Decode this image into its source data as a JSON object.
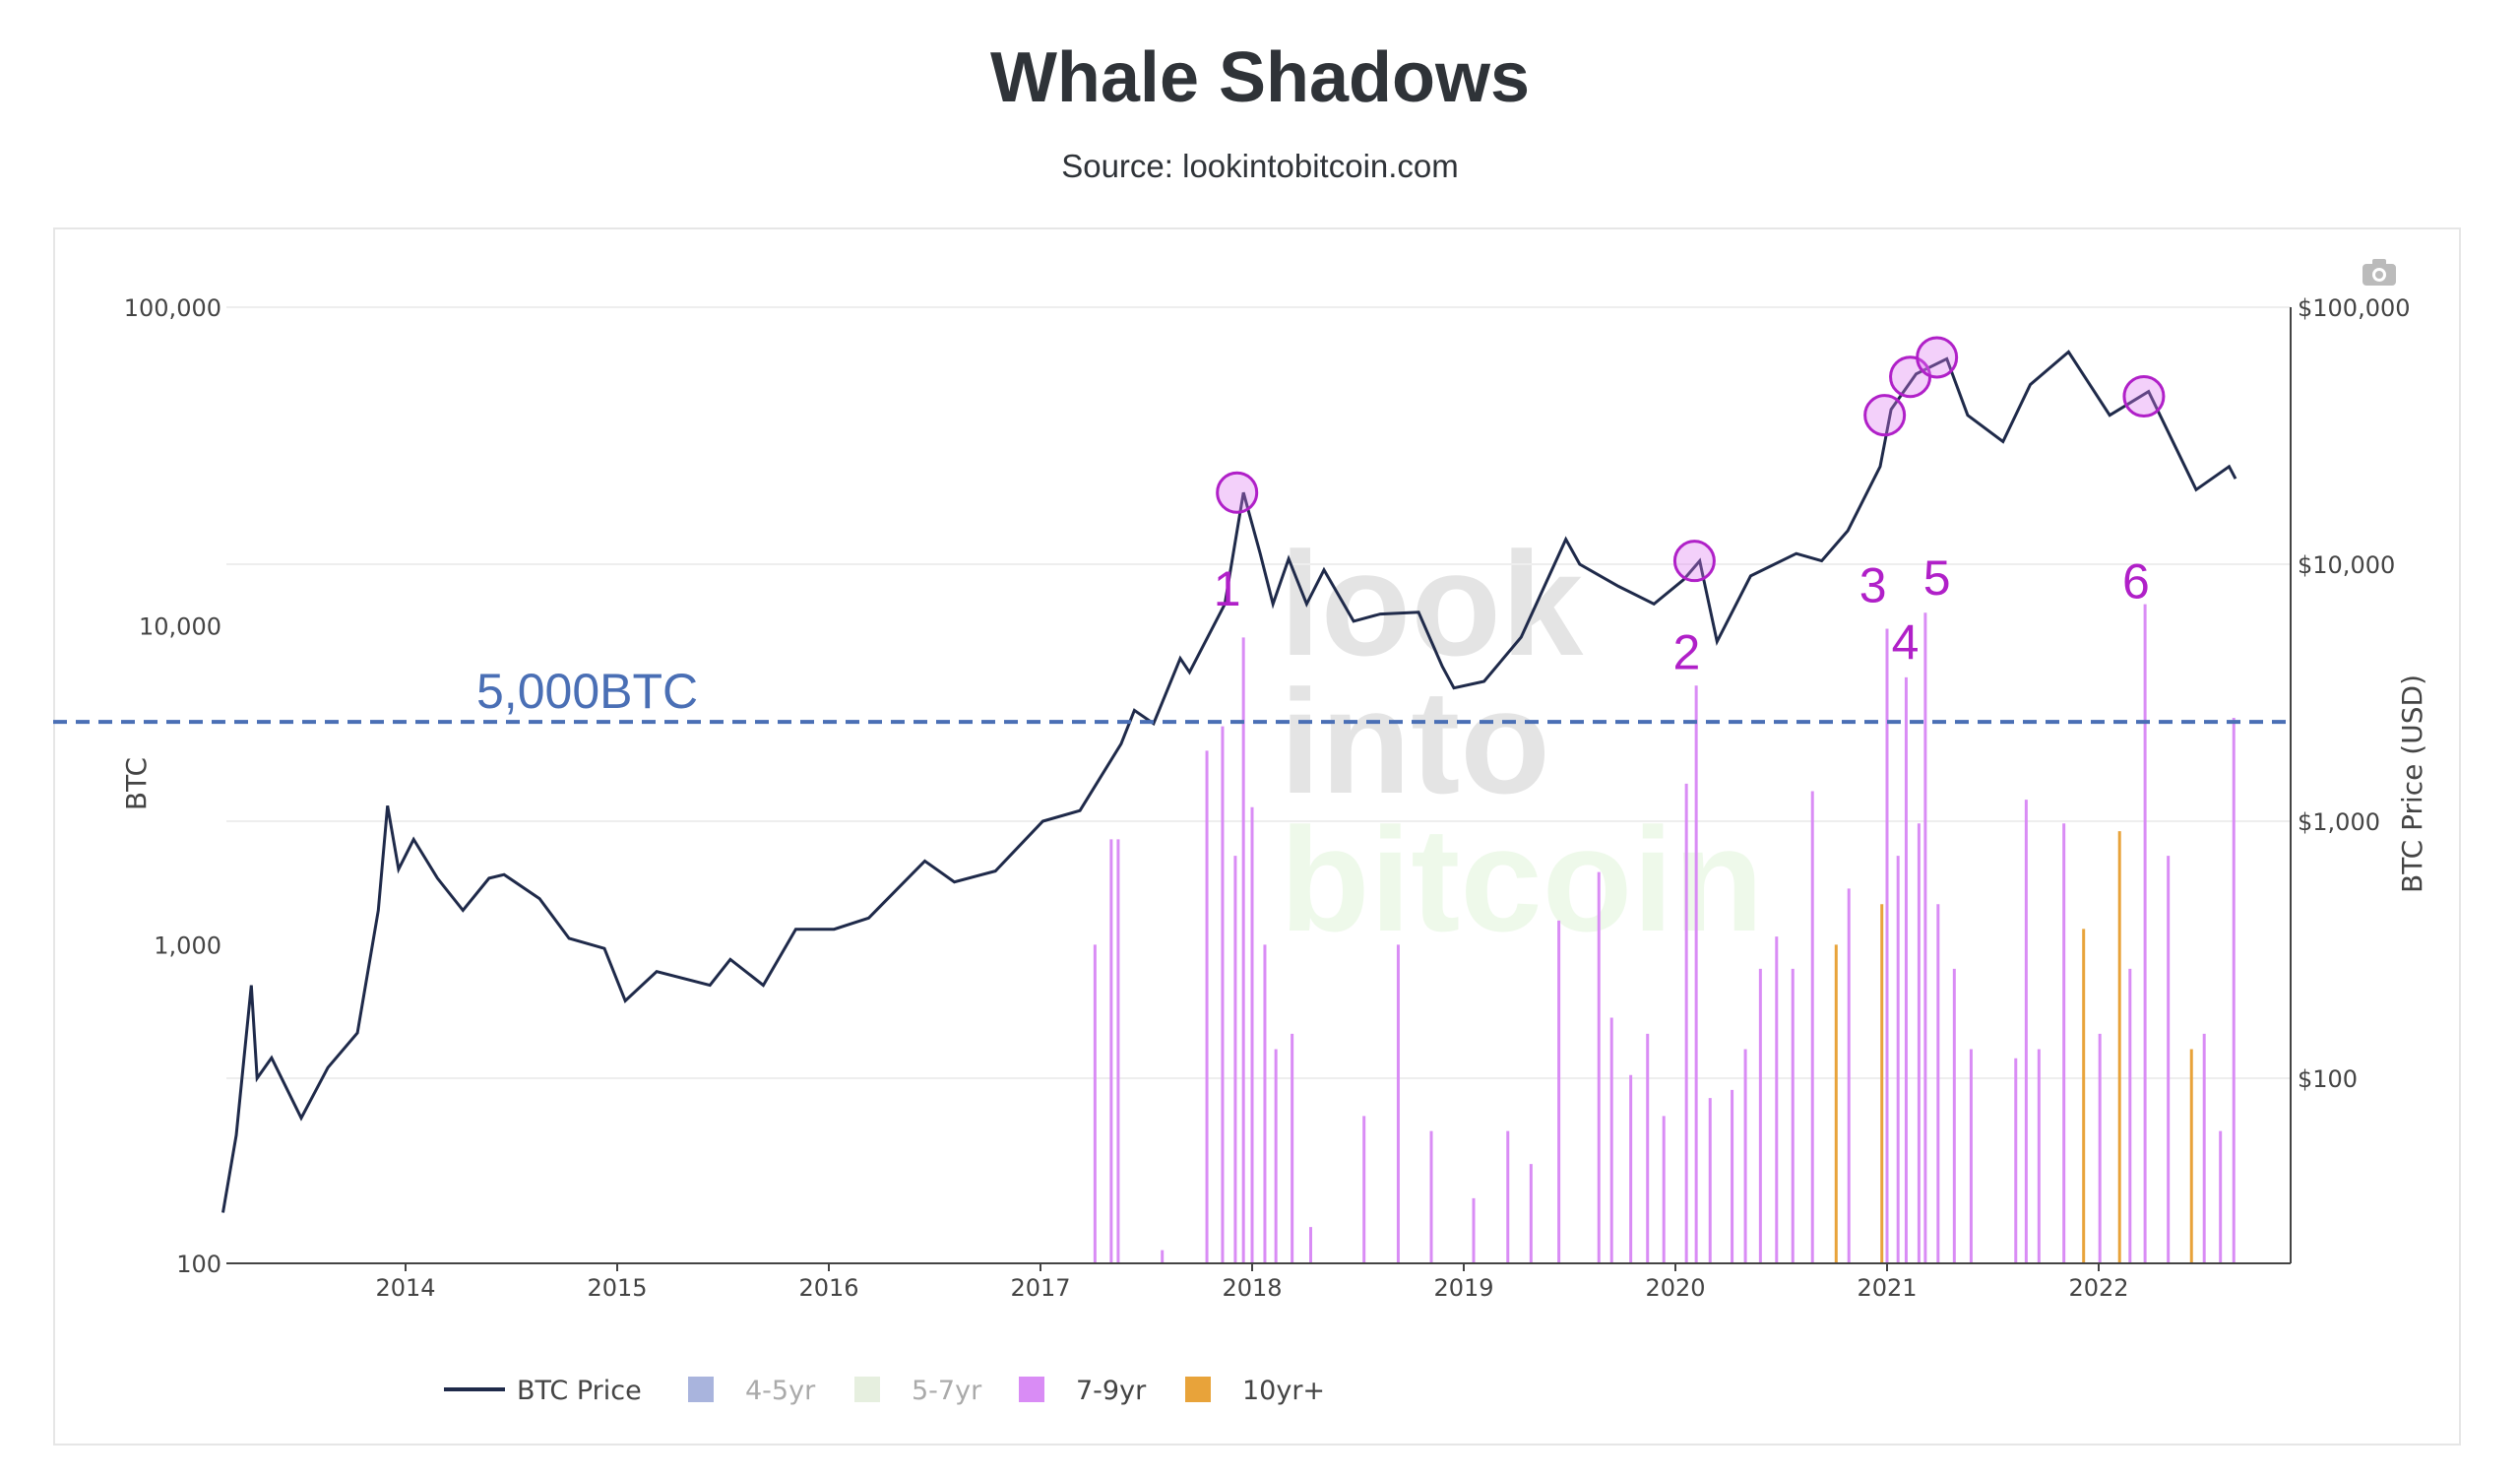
{
  "title": "Whale Shadows",
  "subtitle": "Source: lookintobitcoin.com",
  "watermark": [
    "look",
    "into",
    "bitcoin"
  ],
  "modebar": {
    "icon": "camera-icon"
  },
  "chart_data": {
    "type": "bar+line",
    "title": "Whale Shadows",
    "left_axis": {
      "label": "BTC",
      "scale": "log",
      "range": [
        100,
        100000
      ],
      "ticks": [
        "100",
        "1,000",
        "10,000",
        "100,000"
      ],
      "tick_values": [
        100,
        1000,
        10000,
        100000
      ]
    },
    "right_axis": {
      "label": "BTC Price (USD)",
      "scale": "log",
      "range": [
        19,
        100000
      ],
      "ticks": [
        "$100",
        "$1,000",
        "$10,000",
        "$100,000"
      ],
      "tick_values": [
        100,
        1000,
        10000,
        100000
      ]
    },
    "x_axis": {
      "type": "date",
      "range": [
        "2013-02-20",
        "2022-12-05"
      ],
      "ticks": [
        "2014",
        "2015",
        "2016",
        "2017",
        "2018",
        "2019",
        "2020",
        "2021",
        "2022"
      ]
    },
    "grid": true,
    "legend": {
      "placement": "bottom",
      "items": [
        {
          "name": "BTC Price",
          "kind": "line",
          "color": "#1f2a4a",
          "active": true
        },
        {
          "name": "4-5yr",
          "kind": "bar",
          "color": "#a9b4dd",
          "active": false
        },
        {
          "name": "5-7yr",
          "kind": "bar",
          "color": "#e6efdf",
          "active": false
        },
        {
          "name": "7-9yr",
          "kind": "bar",
          "color": "#d98cf5",
          "active": true
        },
        {
          "name": "10yr+",
          "kind": "bar",
          "color": "#e8a33a",
          "active": true
        }
      ]
    },
    "threshold": {
      "value": 5000,
      "label": "5,000BTC",
      "color": "#4a6fb5"
    },
    "annotations": [
      {
        "label": "1",
        "date": "2017-12-06",
        "price": 19000
      },
      {
        "label": "2",
        "date": "2020-02-03",
        "price": 10300
      },
      {
        "label": "3",
        "date": "2020-12-28",
        "price": 38000
      },
      {
        "label": "4",
        "date": "2021-02-10",
        "price": 53600
      },
      {
        "label": "5",
        "date": "2021-03-28",
        "price": 63800
      },
      {
        "label": "6",
        "date": "2022-03-20",
        "price": 45000
      }
    ],
    "annotation_color": "#b020c8",
    "price_series": [
      [
        "2013-02-20",
        30
      ],
      [
        "2013-03-15",
        60
      ],
      [
        "2013-04-10",
        230
      ],
      [
        "2013-04-20",
        100
      ],
      [
        "2013-05-15",
        120
      ],
      [
        "2013-07-05",
        70
      ],
      [
        "2013-08-20",
        110
      ],
      [
        "2013-10-10",
        150
      ],
      [
        "2013-11-15",
        450
      ],
      [
        "2013-12-01",
        1150
      ],
      [
        "2013-12-20",
        650
      ],
      [
        "2014-01-15",
        850
      ],
      [
        "2014-02-25",
        600
      ],
      [
        "2014-04-10",
        450
      ],
      [
        "2014-05-25",
        600
      ],
      [
        "2014-06-20",
        620
      ],
      [
        "2014-08-20",
        500
      ],
      [
        "2014-10-10",
        350
      ],
      [
        "2014-12-10",
        320
      ],
      [
        "2015-01-15",
        200
      ],
      [
        "2015-03-10",
        260
      ],
      [
        "2015-06-10",
        230
      ],
      [
        "2015-07-15",
        290
      ],
      [
        "2015-09-10",
        230
      ],
      [
        "2015-11-05",
        380
      ],
      [
        "2016-01-10",
        380
      ],
      [
        "2016-03-10",
        420
      ],
      [
        "2016-06-15",
        700
      ],
      [
        "2016-08-05",
        580
      ],
      [
        "2016-10-15",
        640
      ],
      [
        "2017-01-05",
        1000
      ],
      [
        "2017-03-10",
        1100
      ],
      [
        "2017-05-20",
        2000
      ],
      [
        "2017-06-12",
        2700
      ],
      [
        "2017-07-15",
        2400
      ],
      [
        "2017-08-30",
        4300
      ],
      [
        "2017-09-15",
        3800
      ],
      [
        "2017-11-15",
        7000
      ],
      [
        "2017-12-17",
        19000
      ],
      [
        "2018-01-15",
        11000
      ],
      [
        "2018-02-06",
        7000
      ],
      [
        "2018-03-05",
        10500
      ],
      [
        "2018-04-05",
        7000
      ],
      [
        "2018-05-05",
        9500
      ],
      [
        "2018-06-25",
        6000
      ],
      [
        "2018-08-10",
        6400
      ],
      [
        "2018-10-15",
        6500
      ],
      [
        "2018-11-25",
        4000
      ],
      [
        "2018-12-15",
        3300
      ],
      [
        "2019-02-05",
        3500
      ],
      [
        "2019-04-10",
        5200
      ],
      [
        "2019-06-26",
        12500
      ],
      [
        "2019-07-20",
        10000
      ],
      [
        "2019-09-25",
        8200
      ],
      [
        "2019-11-25",
        7000
      ],
      [
        "2020-01-15",
        8700
      ],
      [
        "2020-02-12",
        10300
      ],
      [
        "2020-03-13",
        5000
      ],
      [
        "2020-05-10",
        9000
      ],
      [
        "2020-07-28",
        11000
      ],
      [
        "2020-09-10",
        10300
      ],
      [
        "2020-10-25",
        13500
      ],
      [
        "2020-12-20",
        24000
      ],
      [
        "2021-01-08",
        40000
      ],
      [
        "2021-02-20",
        55000
      ],
      [
        "2021-04-14",
        63000
      ],
      [
        "2021-05-20",
        38000
      ],
      [
        "2021-07-20",
        30000
      ],
      [
        "2021-09-05",
        50000
      ],
      [
        "2021-11-10",
        67000
      ],
      [
        "2022-01-20",
        38000
      ],
      [
        "2022-03-28",
        47000
      ],
      [
        "2022-05-12",
        29000
      ],
      [
        "2022-06-18",
        19500
      ],
      [
        "2022-08-14",
        24000
      ],
      [
        "2022-08-25",
        21500
      ]
    ],
    "bars": [
      [
        "2017-04-05",
        1000,
        "7-9yr"
      ],
      [
        "2017-05-03",
        2140,
        "7-9yr"
      ],
      [
        "2017-05-15",
        2140,
        "7-9yr"
      ],
      [
        "2017-07-30",
        110,
        "7-9yr"
      ],
      [
        "2017-10-15",
        4060,
        "7-9yr"
      ],
      [
        "2017-11-11",
        4840,
        "7-9yr"
      ],
      [
        "2017-12-03",
        1900,
        "7-9yr"
      ],
      [
        "2017-12-17",
        9200,
        "7-9yr"
      ],
      [
        "2018-01-01",
        2700,
        "7-9yr"
      ],
      [
        "2018-01-23",
        1000,
        "7-9yr"
      ],
      [
        "2018-02-11",
        470,
        "7-9yr"
      ],
      [
        "2018-03-11",
        525,
        "7-9yr"
      ],
      [
        "2018-04-12",
        130,
        "7-9yr"
      ],
      [
        "2018-07-13",
        290,
        "7-9yr"
      ],
      [
        "2018-09-10",
        1000,
        "7-9yr"
      ],
      [
        "2018-11-06",
        260,
        "7-9yr"
      ],
      [
        "2019-01-18",
        160,
        "7-9yr"
      ],
      [
        "2019-03-18",
        260,
        "7-9yr"
      ],
      [
        "2019-04-27",
        205,
        "7-9yr"
      ],
      [
        "2019-06-14",
        1190,
        "7-9yr"
      ],
      [
        "2019-08-22",
        1690,
        "7-9yr"
      ],
      [
        "2019-09-13",
        590,
        "7-9yr"
      ],
      [
        "2019-10-16",
        390,
        "7-9yr"
      ],
      [
        "2019-11-14",
        525,
        "7-9yr"
      ],
      [
        "2019-12-12",
        290,
        "7-9yr"
      ],
      [
        "2020-01-20",
        3200,
        "7-9yr"
      ],
      [
        "2020-02-06",
        6500,
        "7-9yr"
      ],
      [
        "2020-03-01",
        330,
        "7-9yr"
      ],
      [
        "2020-04-08",
        350,
        "7-9yr"
      ],
      [
        "2020-05-01",
        470,
        "7-9yr"
      ],
      [
        "2020-05-27",
        840,
        "7-9yr"
      ],
      [
        "2020-06-24",
        1060,
        "7-9yr"
      ],
      [
        "2020-07-22",
        840,
        "7-9yr"
      ],
      [
        "2020-08-25",
        3030,
        "7-9yr"
      ],
      [
        "2020-10-05",
        1000,
        "10yr+"
      ],
      [
        "2020-10-27",
        1500,
        "7-9yr"
      ],
      [
        "2020-12-23",
        1340,
        "10yr+"
      ],
      [
        "2021-01-01",
        9800,
        "7-9yr"
      ],
      [
        "2021-01-20",
        1900,
        "7-9yr"
      ],
      [
        "2021-02-03",
        6900,
        "7-9yr"
      ],
      [
        "2021-02-25",
        2400,
        "7-9yr"
      ],
      [
        "2021-03-08",
        11000,
        "7-9yr"
      ],
      [
        "2021-03-30",
        1340,
        "7-9yr"
      ],
      [
        "2021-04-27",
        840,
        "7-9yr"
      ],
      [
        "2021-05-26",
        470,
        "7-9yr"
      ],
      [
        "2021-08-11",
        440,
        "7-9yr"
      ],
      [
        "2021-08-29",
        2850,
        "7-9yr"
      ],
      [
        "2021-09-20",
        470,
        "7-9yr"
      ],
      [
        "2021-11-02",
        2400,
        "7-9yr"
      ],
      [
        "2021-12-06",
        1120,
        "10yr+"
      ],
      [
        "2022-01-03",
        525,
        "7-9yr"
      ],
      [
        "2022-02-06",
        2270,
        "10yr+"
      ],
      [
        "2022-02-24",
        840,
        "7-9yr"
      ],
      [
        "2022-03-22",
        11700,
        "7-9yr"
      ],
      [
        "2022-05-01",
        1900,
        "7-9yr"
      ],
      [
        "2022-06-10",
        470,
        "10yr+"
      ],
      [
        "2022-07-02",
        525,
        "7-9yr"
      ],
      [
        "2022-07-30",
        260,
        "7-9yr"
      ],
      [
        "2022-08-22",
        5150,
        "7-9yr"
      ]
    ]
  }
}
